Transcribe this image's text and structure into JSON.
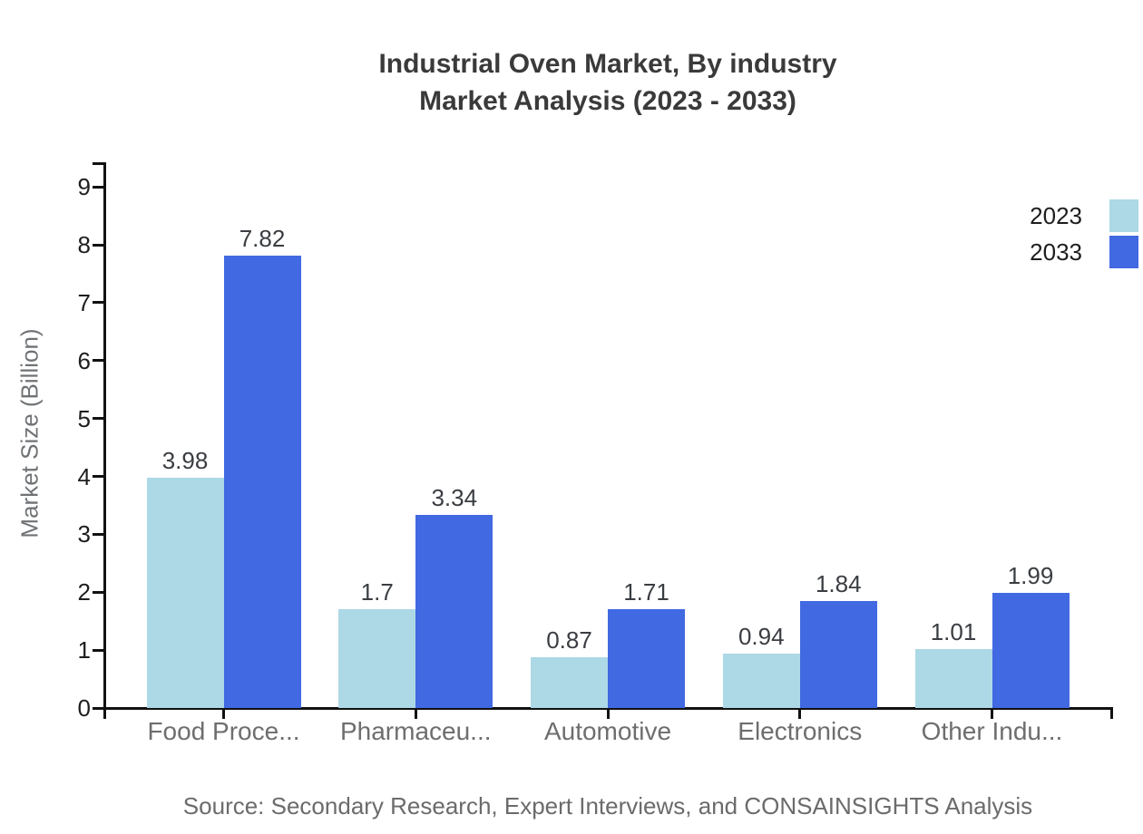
{
  "title": {
    "line1": "Industrial Oven Market, By industry",
    "line2": "Market Analysis (2023 - 2033)"
  },
  "y_axis": {
    "label": "Market Size (Billion)",
    "ticks": [
      "0",
      "1",
      "2",
      "3",
      "4",
      "5",
      "6",
      "7",
      "8",
      "9"
    ]
  },
  "legend": [
    {
      "label": "2023",
      "color": "#ADD8E6"
    },
    {
      "label": "2033",
      "color": "#4169E1"
    }
  ],
  "source": "Source: Secondary Research, Expert Interviews, and CONSAINSIGHTS Analysis",
  "chart_data": {
    "type": "bar",
    "title": "Industrial Oven Market, By industry Market Analysis (2023 - 2033)",
    "categories": [
      "Food Proce...",
      "Pharmaceu...",
      "Automotive",
      "Electronics",
      "Other Indu..."
    ],
    "series": [
      {
        "name": "2023",
        "color": "#ADD8E6",
        "values": [
          3.98,
          1.7,
          0.87,
          0.94,
          1.01
        ],
        "value_labels": [
          "3.98",
          "1.7",
          "0.87",
          "0.94",
          "1.01"
        ]
      },
      {
        "name": "2033",
        "color": "#4169E1",
        "values": [
          7.82,
          3.34,
          1.71,
          1.84,
          1.99
        ],
        "value_labels": [
          "7.82",
          "3.34",
          "1.71",
          "1.84",
          "1.99"
        ]
      }
    ],
    "xlabel": "",
    "ylabel": "Market Size (Billion)",
    "ylim": [
      0,
      9
    ],
    "grid": false,
    "legend_position": "top-right"
  }
}
